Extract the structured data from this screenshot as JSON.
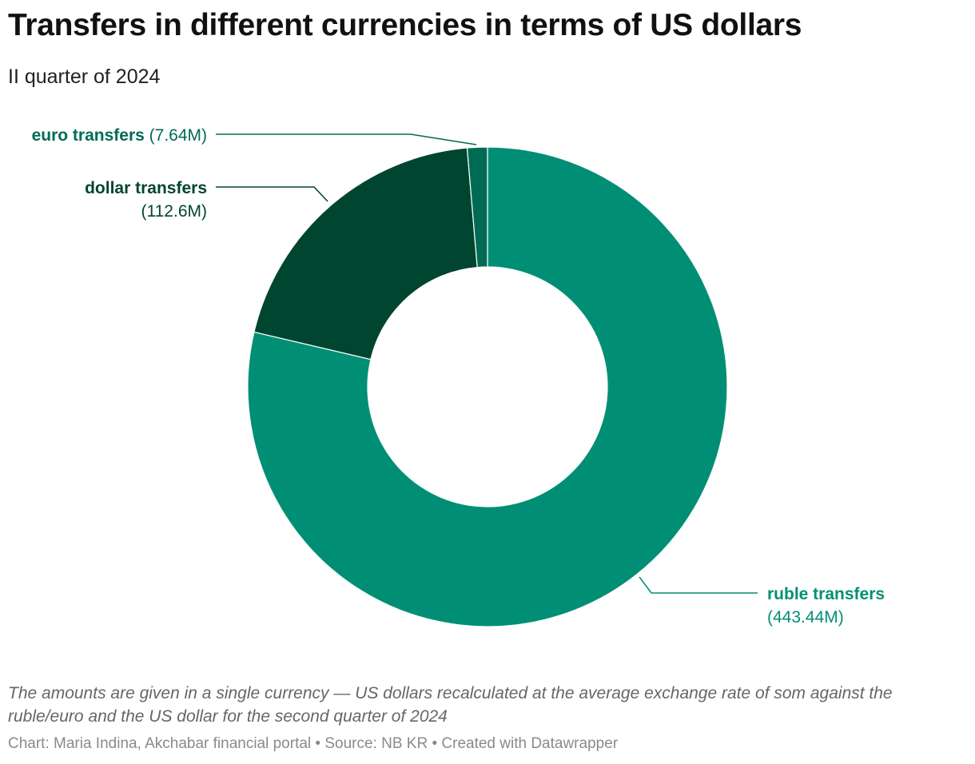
{
  "title": "Transfers in different currencies in terms of US dollars",
  "subtitle": "II quarter of 2024",
  "notes": "The amounts are given in a single currency — US dollars recalculated at the average exchange rate of som against the ruble/euro and the US dollar for the second quarter of 2024",
  "footer": "Chart: Maria Indina, Akchabar financial portal • Source: NB KR • Created with Datawrapper",
  "chart_data": {
    "type": "pie",
    "variant": "donut",
    "title": "Transfers in different currencies in terms of US dollars",
    "subtitle": "II quarter of 2024",
    "categories": [
      "ruble transfers",
      "dollar transfers",
      "euro transfers"
    ],
    "values": [
      443.44,
      112.6,
      7.64
    ],
    "value_labels": [
      "(443.44M)",
      "(112.6M)",
      "(7.64M)"
    ],
    "unit": "M",
    "colors": [
      "#008f74",
      "#004530",
      "#006b55"
    ],
    "legend": "none"
  }
}
